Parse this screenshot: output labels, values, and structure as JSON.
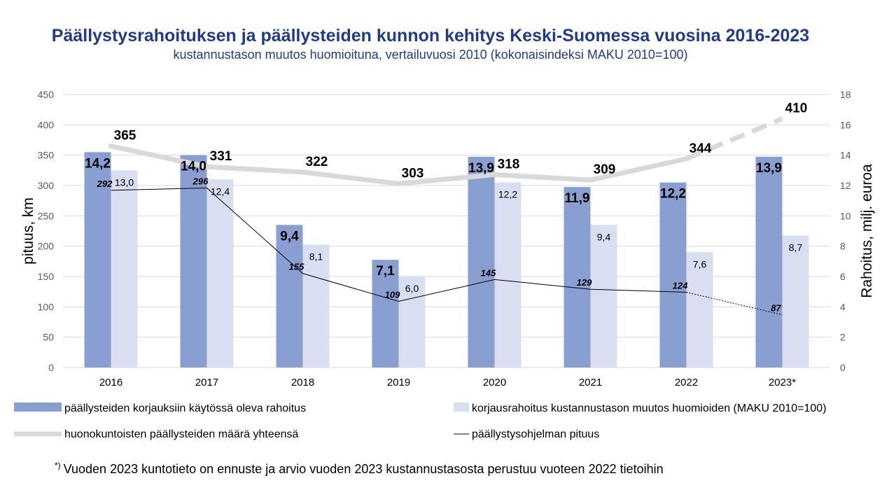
{
  "chart_data": {
    "type": "bar",
    "title": "Päällystysrahoituksen ja päällysteiden kunnon kehitys Keski-Suomessa vuosina 2016-2023",
    "subtitle": "kustannustason muutos huomioituna, vertailuvuosi 2010 (kokonaisindeksi MAKU 2010=100)",
    "categories": [
      "2016",
      "2017",
      "2018",
      "2019",
      "2020",
      "2021",
      "2022",
      "2023*"
    ],
    "ylabel_left": "pituus, km",
    "ylabel_right": "Rahoitus, milj. euroa",
    "ylim_left": [
      0,
      450
    ],
    "ylim_right": [
      0,
      18
    ],
    "yticks_left": [
      "0",
      "50",
      "100",
      "150",
      "200",
      "250",
      "300",
      "350",
      "400",
      "450"
    ],
    "yticks_right": [
      "0",
      "2",
      "4",
      "6",
      "8",
      "10",
      "12",
      "14",
      "16",
      "18"
    ],
    "grid": true,
    "legend_position": "bottom",
    "series": [
      {
        "name": "päällysteiden korjauksiin käytössä oleva rahoitus",
        "type": "bar",
        "axis": "right",
        "color": "#8a9fd1",
        "values": [
          14.2,
          14.0,
          9.4,
          7.1,
          13.9,
          11.9,
          12.2,
          13.9
        ],
        "labels": [
          "14,2",
          "14,0",
          "9,4",
          "7,1",
          "13,9",
          "11,9",
          "12,2",
          "13,9"
        ]
      },
      {
        "name": "korjausrahoitus kustannustason muutos huomioiden (MAKU 2010=100)",
        "type": "bar",
        "axis": "right",
        "color": "#d9def0",
        "values": [
          13.0,
          12.4,
          8.1,
          6.0,
          12.2,
          9.4,
          7.6,
          8.7
        ],
        "labels": [
          "13,0",
          "12,4",
          "8,1",
          "6,0",
          "12,2",
          "9,4",
          "7,6",
          "8,7"
        ]
      },
      {
        "name": "huonokuntoisten päällysteiden määrä yhteensä",
        "type": "line",
        "axis": "left",
        "color": "#d9d9d9",
        "values": [
          365,
          331,
          322,
          303,
          318,
          309,
          344,
          410
        ],
        "labels": [
          "365",
          "331",
          "322",
          "303",
          "318",
          "309",
          "344",
          "410"
        ],
        "forecast_from_index": 6
      },
      {
        "name": "päällystysohjelman pituus",
        "type": "line",
        "axis": "left",
        "color": "#000000",
        "values": [
          292,
          296,
          155,
          109,
          145,
          129,
          124,
          87
        ],
        "labels": [
          "292",
          "296",
          "155",
          "109",
          "145",
          "129",
          "124",
          "87"
        ],
        "forecast_from_index": 6
      }
    ],
    "footnote_mark": "*)",
    "footnote": "Vuoden 2023 kuntotieto on ennuste ja arvio vuoden 2023 kustannustasosta perustuu vuoteen 2022 tietoihin"
  }
}
